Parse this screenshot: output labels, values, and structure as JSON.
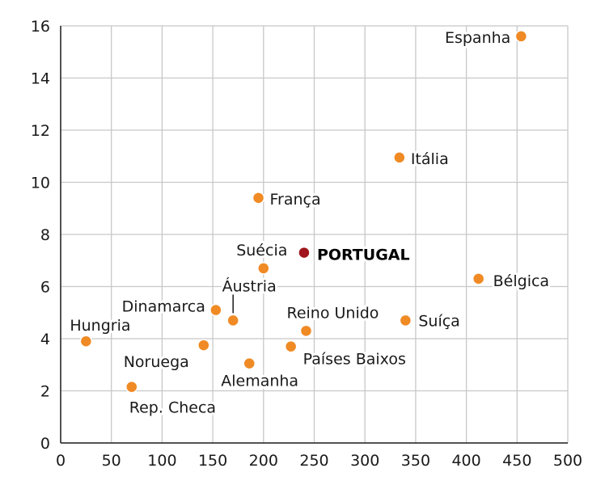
{
  "chart_data": {
    "type": "scatter",
    "title": "",
    "xlabel": "",
    "ylabel": "",
    "xlim": [
      0,
      500
    ],
    "ylim": [
      0,
      16
    ],
    "x_ticks": [
      "0",
      "50",
      "100",
      "150",
      "200",
      "250",
      "300",
      "350",
      "400",
      "450",
      "500"
    ],
    "y_ticks": [
      "0",
      "2",
      "4",
      "6",
      "8",
      "10",
      "12",
      "14",
      "16"
    ],
    "grid": true,
    "colors": {
      "point": "#f08a24",
      "highlight": "#a0161c",
      "grid": "#c8c8c8",
      "axis": "#1a1a1a"
    },
    "points": [
      {
        "label": "Espanha",
        "x": 454,
        "y": 15.6
      },
      {
        "label": "Itália",
        "x": 334,
        "y": 10.95
      },
      {
        "label": "França",
        "x": 195,
        "y": 9.4
      },
      {
        "label": "PORTUGAL",
        "x": 240,
        "y": 7.3,
        "highlight": true
      },
      {
        "label": "Suécia",
        "x": 200,
        "y": 6.7
      },
      {
        "label": "Bélgica",
        "x": 412,
        "y": 6.3
      },
      {
        "label": "Áustria",
        "x": 170,
        "y": 4.7
      },
      {
        "label": "Dinamarca",
        "x": 153,
        "y": 5.1
      },
      {
        "label": "Reino Unido",
        "x": 242,
        "y": 4.3
      },
      {
        "label": "Suíça",
        "x": 340,
        "y": 4.7
      },
      {
        "label": "Hungria",
        "x": 25,
        "y": 3.9
      },
      {
        "label": "Noruega",
        "x": 141,
        "y": 3.75
      },
      {
        "label": "Países Baixos",
        "x": 227,
        "y": 3.7
      },
      {
        "label": "Alemanha",
        "x": 186,
        "y": 3.05
      },
      {
        "label": "Rep. Checa",
        "x": 70,
        "y": 2.15
      }
    ]
  }
}
